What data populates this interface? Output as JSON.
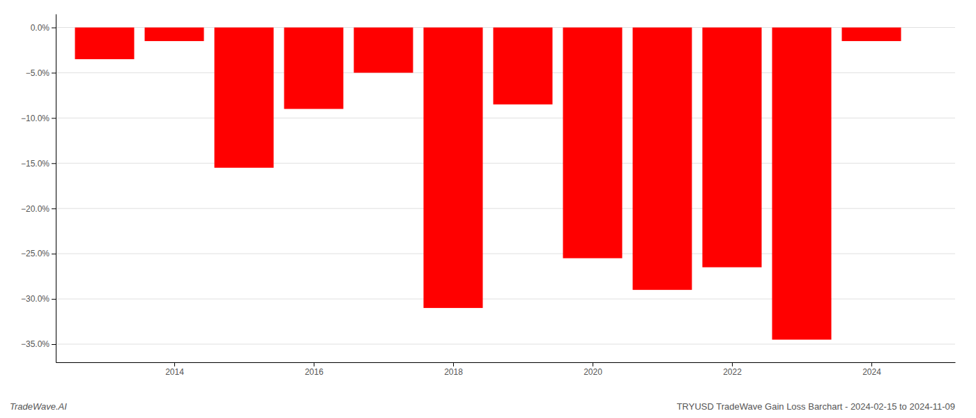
{
  "chart_data": {
    "type": "bar",
    "title": "TRYUSD TradeWave Gain Loss Barchart - 2024-02-15 to 2024-11-09",
    "annotations": [
      "TradeWave.AI"
    ],
    "x": [
      2013,
      2014,
      2015,
      2016,
      2017,
      2018,
      2019,
      2020,
      2021,
      2022,
      2023,
      2024
    ],
    "values": [
      -3.5,
      -1.5,
      -15.5,
      -9.0,
      -5.0,
      -31.0,
      -8.5,
      -25.5,
      -29.0,
      -26.5,
      -34.5,
      -1.5
    ],
    "color": "#ff0000",
    "xlim": [
      2012.3,
      2025.2
    ],
    "xticks": [
      2014,
      2016,
      2018,
      2020,
      2022,
      2024
    ],
    "ylim": [
      -37,
      1.5
    ],
    "yticks": [
      {
        "value": 0.0,
        "label": "0.0%"
      },
      {
        "value": -5.0,
        "label": "−5.0%"
      },
      {
        "value": -10.0,
        "label": "−10.0%"
      },
      {
        "value": -15.0,
        "label": "−15.0%"
      },
      {
        "value": -20.0,
        "label": "−20.0%"
      },
      {
        "value": -25.0,
        "label": "−25.0%"
      },
      {
        "value": -30.0,
        "label": "−30.0%"
      },
      {
        "value": -35.0,
        "label": "−35.0%"
      }
    ],
    "grid": true
  }
}
